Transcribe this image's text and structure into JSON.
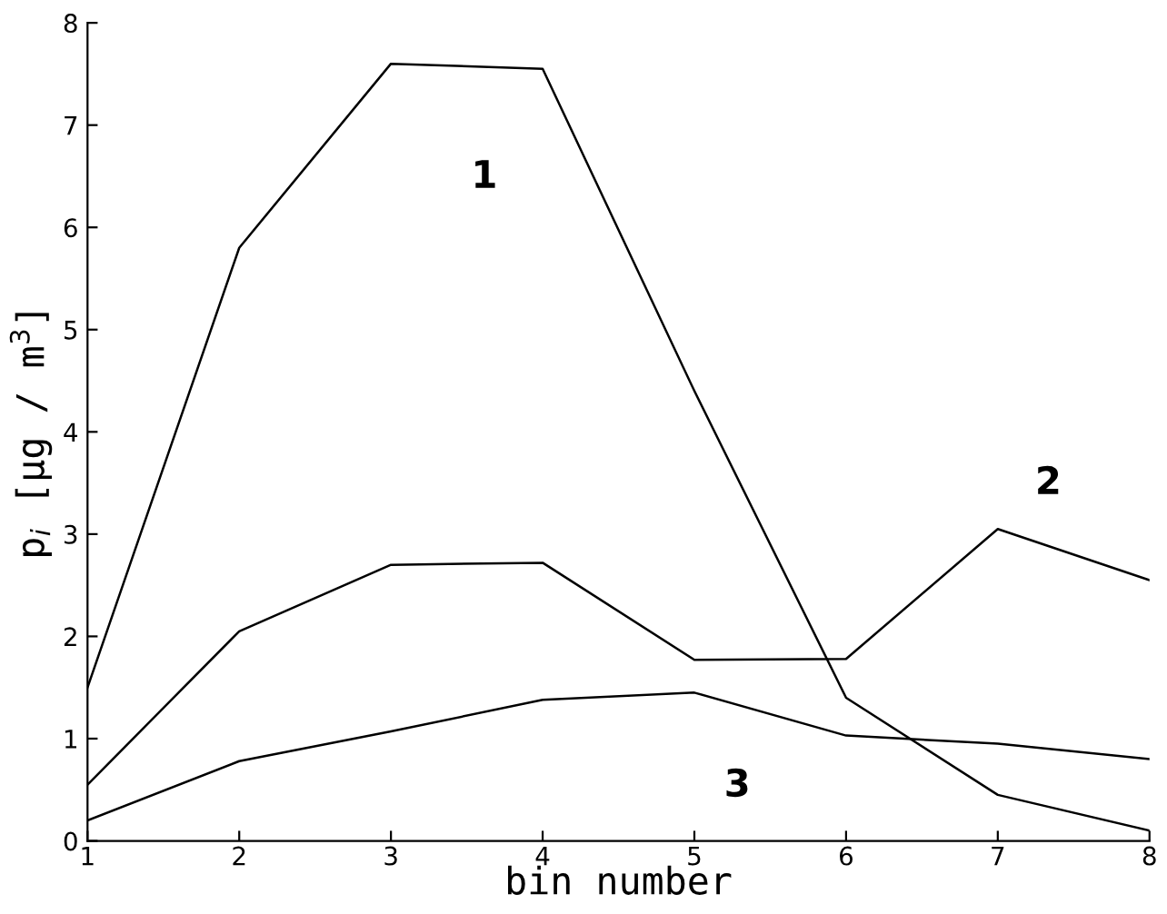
{
  "chart_data": {
    "type": "line",
    "xlabel": "bin number",
    "ylabel": "p$_{i}$ [µg / m$^{3}$]",
    "x": [
      1,
      2,
      3,
      4,
      5,
      6,
      7,
      8
    ],
    "series": [
      {
        "name": "1",
        "color": "#000000",
        "values": [
          1.5,
          5.8,
          7.6,
          7.55,
          4.4,
          1.4,
          0.45,
          0.1
        ]
      },
      {
        "name": "2",
        "color": "#000000",
        "values": [
          0.55,
          2.05,
          2.7,
          2.72,
          1.77,
          1.78,
          3.05,
          2.55
        ]
      },
      {
        "name": "3",
        "color": "#000000",
        "values": [
          0.2,
          0.78,
          1.07,
          1.38,
          1.45,
          1.03,
          0.95,
          0.8
        ]
      }
    ],
    "xlim": [
      1,
      8
    ],
    "ylim": [
      0,
      8
    ],
    "xticks": [
      1,
      2,
      3,
      4,
      5,
      6,
      7,
      8
    ],
    "yticks": [
      0,
      1,
      2,
      3,
      4,
      5,
      6,
      7,
      8
    ],
    "grid": false,
    "legend": false
  }
}
